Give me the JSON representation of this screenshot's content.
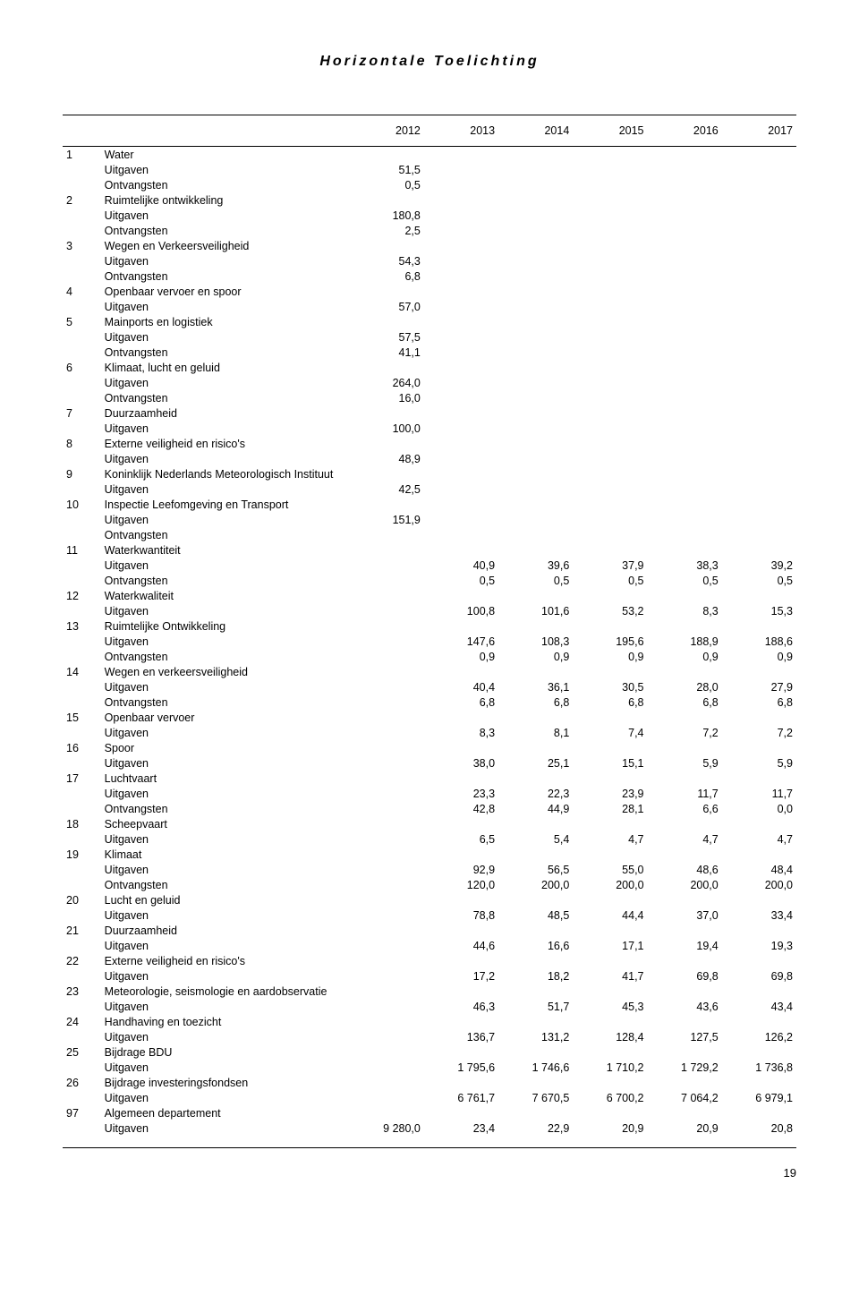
{
  "title": "Horizontale Toelichting",
  "page_number": "19",
  "years": [
    "2012",
    "2013",
    "2014",
    "2015",
    "2016",
    "2017"
  ],
  "rows": [
    {
      "num": "1",
      "label": "Water",
      "v": [
        "",
        "",
        "",
        "",
        "",
        ""
      ]
    },
    {
      "num": "",
      "label": "Uitgaven",
      "v": [
        "51,5",
        "",
        "",
        "",
        "",
        ""
      ]
    },
    {
      "num": "",
      "label": "Ontvangsten",
      "v": [
        "0,5",
        "",
        "",
        "",
        "",
        ""
      ]
    },
    {
      "num": "2",
      "label": "Ruimtelijke ontwikkeling",
      "v": [
        "",
        "",
        "",
        "",
        "",
        ""
      ]
    },
    {
      "num": "",
      "label": "Uitgaven",
      "v": [
        "180,8",
        "",
        "",
        "",
        "",
        ""
      ]
    },
    {
      "num": "",
      "label": "Ontvangsten",
      "v": [
        "2,5",
        "",
        "",
        "",
        "",
        ""
      ]
    },
    {
      "num": "3",
      "label": "Wegen en Verkeersveiligheid",
      "v": [
        "",
        "",
        "",
        "",
        "",
        ""
      ]
    },
    {
      "num": "",
      "label": "Uitgaven",
      "v": [
        "54,3",
        "",
        "",
        "",
        "",
        ""
      ]
    },
    {
      "num": "",
      "label": "Ontvangsten",
      "v": [
        "6,8",
        "",
        "",
        "",
        "",
        ""
      ]
    },
    {
      "num": "4",
      "label": "Openbaar vervoer en spoor",
      "v": [
        "",
        "",
        "",
        "",
        "",
        ""
      ]
    },
    {
      "num": "",
      "label": "Uitgaven",
      "v": [
        "57,0",
        "",
        "",
        "",
        "",
        ""
      ]
    },
    {
      "num": "5",
      "label": "Mainports en logistiek",
      "v": [
        "",
        "",
        "",
        "",
        "",
        ""
      ]
    },
    {
      "num": "",
      "label": "Uitgaven",
      "v": [
        "57,5",
        "",
        "",
        "",
        "",
        ""
      ]
    },
    {
      "num": "",
      "label": "Ontvangsten",
      "v": [
        "41,1",
        "",
        "",
        "",
        "",
        ""
      ]
    },
    {
      "num": "6",
      "label": "Klimaat, lucht en geluid",
      "v": [
        "",
        "",
        "",
        "",
        "",
        ""
      ]
    },
    {
      "num": "",
      "label": "Uitgaven",
      "v": [
        "264,0",
        "",
        "",
        "",
        "",
        ""
      ]
    },
    {
      "num": "",
      "label": "Ontvangsten",
      "v": [
        "16,0",
        "",
        "",
        "",
        "",
        ""
      ]
    },
    {
      "num": "7",
      "label": "Duurzaamheid",
      "v": [
        "",
        "",
        "",
        "",
        "",
        ""
      ]
    },
    {
      "num": "",
      "label": "Uitgaven",
      "v": [
        "100,0",
        "",
        "",
        "",
        "",
        ""
      ]
    },
    {
      "num": "8",
      "label": "Externe veiligheid en risico's",
      "v": [
        "",
        "",
        "",
        "",
        "",
        ""
      ]
    },
    {
      "num": "",
      "label": "Uitgaven",
      "v": [
        "48,9",
        "",
        "",
        "",
        "",
        ""
      ]
    },
    {
      "num": "9",
      "label": "Koninklijk Nederlands Meteorologisch Instituut",
      "v": [
        "",
        "",
        "",
        "",
        "",
        ""
      ]
    },
    {
      "num": "",
      "label": "Uitgaven",
      "v": [
        "42,5",
        "",
        "",
        "",
        "",
        ""
      ]
    },
    {
      "num": "10",
      "label": "Inspectie Leefomgeving en Transport",
      "v": [
        "",
        "",
        "",
        "",
        "",
        ""
      ]
    },
    {
      "num": "",
      "label": "Uitgaven",
      "v": [
        "151,9",
        "",
        "",
        "",
        "",
        ""
      ]
    },
    {
      "num": "",
      "label": "Ontvangsten",
      "v": [
        "",
        "",
        "",
        "",
        "",
        ""
      ]
    },
    {
      "num": "11",
      "label": "Waterkwantiteit",
      "v": [
        "",
        "",
        "",
        "",
        "",
        ""
      ]
    },
    {
      "num": "",
      "label": "Uitgaven",
      "v": [
        "",
        "40,9",
        "39,6",
        "37,9",
        "38,3",
        "39,2"
      ]
    },
    {
      "num": "",
      "label": "Ontvangsten",
      "v": [
        "",
        "0,5",
        "0,5",
        "0,5",
        "0,5",
        "0,5"
      ]
    },
    {
      "num": "12",
      "label": "Waterkwaliteit",
      "v": [
        "",
        "",
        "",
        "",
        "",
        ""
      ]
    },
    {
      "num": "",
      "label": "Uitgaven",
      "v": [
        "",
        "100,8",
        "101,6",
        "53,2",
        "8,3",
        "15,3"
      ]
    },
    {
      "num": "13",
      "label": "Ruimtelijke Ontwikkeling",
      "v": [
        "",
        "",
        "",
        "",
        "",
        ""
      ]
    },
    {
      "num": "",
      "label": "Uitgaven",
      "v": [
        "",
        "147,6",
        "108,3",
        "195,6",
        "188,9",
        "188,6"
      ]
    },
    {
      "num": "",
      "label": "Ontvangsten",
      "v": [
        "",
        "0,9",
        "0,9",
        "0,9",
        "0,9",
        "0,9"
      ]
    },
    {
      "num": "14",
      "label": "Wegen en verkeersveiligheid",
      "v": [
        "",
        "",
        "",
        "",
        "",
        ""
      ]
    },
    {
      "num": "",
      "label": "Uitgaven",
      "v": [
        "",
        "40,4",
        "36,1",
        "30,5",
        "28,0",
        "27,9"
      ]
    },
    {
      "num": "",
      "label": "Ontvangsten",
      "v": [
        "",
        "6,8",
        "6,8",
        "6,8",
        "6,8",
        "6,8"
      ]
    },
    {
      "num": "15",
      "label": "Openbaar vervoer",
      "v": [
        "",
        "",
        "",
        "",
        "",
        ""
      ]
    },
    {
      "num": "",
      "label": "Uitgaven",
      "v": [
        "",
        "8,3",
        "8,1",
        "7,4",
        "7,2",
        "7,2"
      ]
    },
    {
      "num": "16",
      "label": "Spoor",
      "v": [
        "",
        "",
        "",
        "",
        "",
        ""
      ]
    },
    {
      "num": "",
      "label": "Uitgaven",
      "v": [
        "",
        "38,0",
        "25,1",
        "15,1",
        "5,9",
        "5,9"
      ]
    },
    {
      "num": "17",
      "label": "Luchtvaart",
      "v": [
        "",
        "",
        "",
        "",
        "",
        ""
      ]
    },
    {
      "num": "",
      "label": "Uitgaven",
      "v": [
        "",
        "23,3",
        "22,3",
        "23,9",
        "11,7",
        "11,7"
      ]
    },
    {
      "num": "",
      "label": "Ontvangsten",
      "v": [
        "",
        "42,8",
        "44,9",
        "28,1",
        "6,6",
        "0,0"
      ]
    },
    {
      "num": "18",
      "label": "Scheepvaart",
      "v": [
        "",
        "",
        "",
        "",
        "",
        ""
      ]
    },
    {
      "num": "",
      "label": "Uitgaven",
      "v": [
        "",
        "6,5",
        "5,4",
        "4,7",
        "4,7",
        "4,7"
      ]
    },
    {
      "num": "19",
      "label": "Klimaat",
      "v": [
        "",
        "",
        "",
        "",
        "",
        ""
      ]
    },
    {
      "num": "",
      "label": "Uitgaven",
      "v": [
        "",
        "92,9",
        "56,5",
        "55,0",
        "48,6",
        "48,4"
      ]
    },
    {
      "num": "",
      "label": "Ontvangsten",
      "v": [
        "",
        "120,0",
        "200,0",
        "200,0",
        "200,0",
        "200,0"
      ]
    },
    {
      "num": "20",
      "label": "Lucht en geluid",
      "v": [
        "",
        "",
        "",
        "",
        "",
        ""
      ]
    },
    {
      "num": "",
      "label": "Uitgaven",
      "v": [
        "",
        "78,8",
        "48,5",
        "44,4",
        "37,0",
        "33,4"
      ]
    },
    {
      "num": "21",
      "label": "Duurzaamheid",
      "v": [
        "",
        "",
        "",
        "",
        "",
        ""
      ]
    },
    {
      "num": "",
      "label": "Uitgaven",
      "v": [
        "",
        "44,6",
        "16,6",
        "17,1",
        "19,4",
        "19,3"
      ]
    },
    {
      "num": "22",
      "label": "Externe veiligheid en risico's",
      "v": [
        "",
        "",
        "",
        "",
        "",
        ""
      ]
    },
    {
      "num": "",
      "label": "Uitgaven",
      "v": [
        "",
        "17,2",
        "18,2",
        "41,7",
        "69,8",
        "69,8"
      ]
    },
    {
      "num": "23",
      "label": "Meteorologie, seismologie en aardobservatie",
      "v": [
        "",
        "",
        "",
        "",
        "",
        ""
      ]
    },
    {
      "num": "",
      "label": "Uitgaven",
      "v": [
        "",
        "46,3",
        "51,7",
        "45,3",
        "43,6",
        "43,4"
      ]
    },
    {
      "num": "24",
      "label": "Handhaving en toezicht",
      "v": [
        "",
        "",
        "",
        "",
        "",
        ""
      ]
    },
    {
      "num": "",
      "label": "Uitgaven",
      "v": [
        "",
        "136,7",
        "131,2",
        "128,4",
        "127,5",
        "126,2"
      ]
    },
    {
      "num": "25",
      "label": "Bijdrage BDU",
      "v": [
        "",
        "",
        "",
        "",
        "",
        ""
      ]
    },
    {
      "num": "",
      "label": "Uitgaven",
      "v": [
        "",
        "1 795,6",
        "1 746,6",
        "1 710,2",
        "1 729,2",
        "1 736,8"
      ]
    },
    {
      "num": "26",
      "label": "Bijdrage investeringsfondsen",
      "v": [
        "",
        "",
        "",
        "",
        "",
        ""
      ]
    },
    {
      "num": "",
      "label": "Uitgaven",
      "v": [
        "",
        "6 761,7",
        "7 670,5",
        "6 700,2",
        "7 064,2",
        "6 979,1"
      ]
    },
    {
      "num": "97",
      "label": "Algemeen departement",
      "v": [
        "",
        "",
        "",
        "",
        "",
        ""
      ]
    },
    {
      "num": "",
      "label": "Uitgaven",
      "v": [
        "9 280,0",
        "23,4",
        "22,9",
        "20,9",
        "20,9",
        "20,8"
      ]
    }
  ]
}
